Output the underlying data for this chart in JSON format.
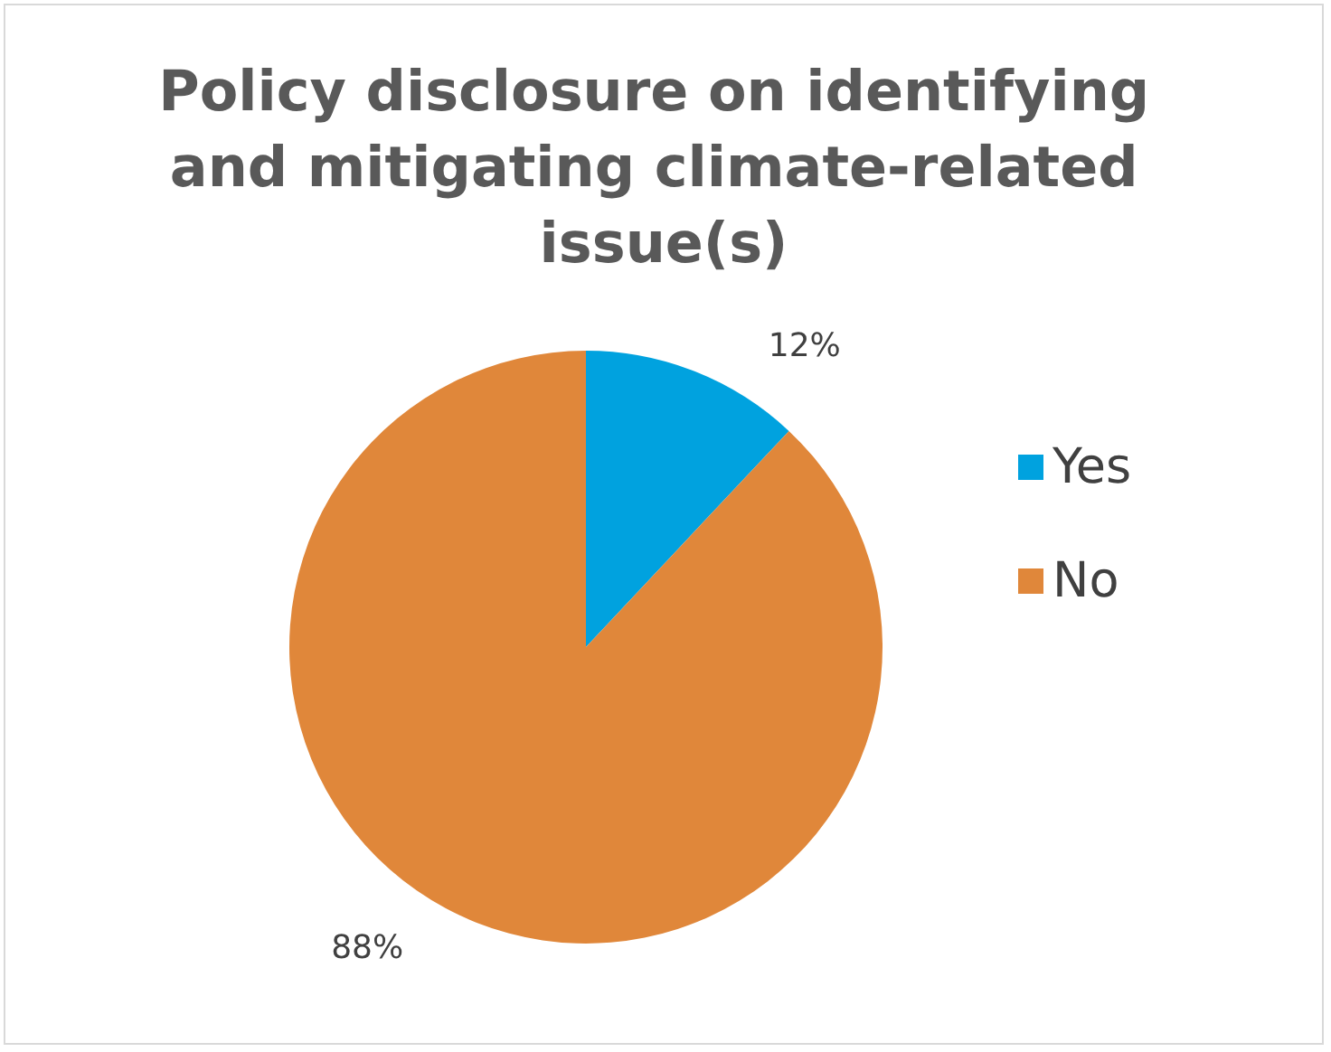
{
  "chart_data": {
    "type": "pie",
    "title": "Policy disclosure on identifying and mitigating climate-related issue(s)",
    "categories": [
      "Yes",
      "No"
    ],
    "values": [
      12,
      88
    ],
    "value_labels": [
      "12%",
      "88%"
    ],
    "colors": [
      "#00a2df",
      "#e0873a"
    ],
    "legend": "right"
  }
}
